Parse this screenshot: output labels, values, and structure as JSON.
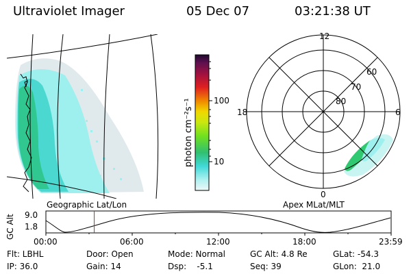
{
  "header": {
    "instrument": "Ultraviolet Imager",
    "date": "05 Dec 07",
    "time": "03:21:38 UT"
  },
  "colorbar": {
    "unit_label": "photon cm⁻²s⁻¹",
    "ticks": [
      "100",
      "10"
    ],
    "scale": "log",
    "colors": [
      "#eef7f7",
      "#aef0f0",
      "#40d8d8",
      "#30c070",
      "#70e020",
      "#c8e810",
      "#f0d800",
      "#f08800",
      "#e02020",
      "#a01040",
      "#601050",
      "#200830"
    ]
  },
  "geo_map": {
    "label": "Geographic Lat/Lon",
    "aurora_colors": [
      "#4ad8d0",
      "#30c890",
      "#9ef0ee",
      "#dde8ea"
    ]
  },
  "polar_plot": {
    "label": "Apex MLat/MLT",
    "mlt_labels": {
      "top": "12",
      "left": "18",
      "right": "6",
      "bottom": "0"
    },
    "lat_labels": [
      "60",
      "70",
      "80"
    ]
  },
  "altitude_plot": {
    "ylabel": "GC Alt",
    "ymax": "9.0",
    "ymin": "1.8",
    "x_ticks": [
      "00:00",
      "06:00",
      "12:00",
      "18:00",
      "23:59"
    ],
    "marker_time_hours": 3.36,
    "marker_color": "#d02020"
  },
  "info": {
    "flt": "Flt: LBHL",
    "ip": "IP: 36.0",
    "door": "Door: Open",
    "gain": "Gain: 14",
    "mode": "Mode: Normal",
    "dsp": "Dsp:    -5.1",
    "gcalt": "GC Alt: 4.8 Re",
    "seq": "Seq: 39",
    "glat": "GLat: -54.3",
    "glon": "GLon:  21.0"
  }
}
